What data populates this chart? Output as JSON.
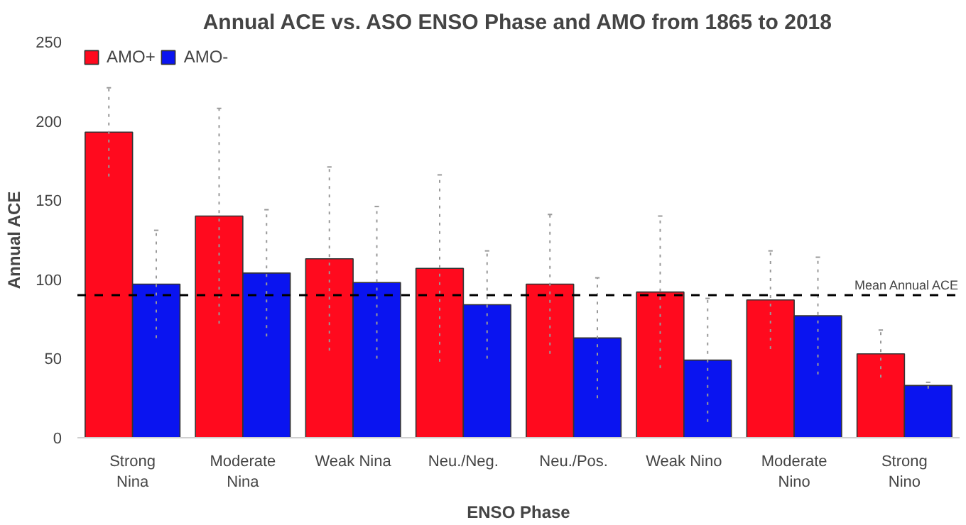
{
  "chart_data": {
    "type": "bar",
    "title": "Annual ACE vs. ASO ENSO Phase and AMO from 1865 to 2018",
    "xlabel": "ENSO Phase",
    "ylabel": "Annual ACE",
    "categories": [
      "Strong Nina",
      "Moderate Nina",
      "Weak Nina",
      "Neu./Neg.",
      "Neu./Pos.",
      "Weak Nino",
      "Moderate Nino",
      "Strong Nino"
    ],
    "series": [
      {
        "name": "AMO+",
        "color": "#ff0a1e",
        "values": [
          193,
          140,
          113,
          107,
          97,
          92,
          87,
          53
        ],
        "errors": [
          28,
          68,
          58,
          59,
          44,
          48,
          31,
          15
        ]
      },
      {
        "name": "AMO-",
        "color": "#0a14f0",
        "values": [
          97,
          104,
          98,
          84,
          63,
          49,
          77,
          33
        ],
        "errors": [
          34,
          40,
          48,
          34,
          38,
          39,
          37,
          2
        ]
      }
    ],
    "ylim": [
      0,
      250
    ],
    "yticks": [
      0,
      50,
      100,
      150,
      200,
      250
    ],
    "grid": false,
    "legend": "top left",
    "ref_lines": [
      {
        "axis": "y",
        "value": 90,
        "label": "Mean Annual ACE",
        "color": "#000000",
        "line_style": "dashed"
      }
    ]
  }
}
